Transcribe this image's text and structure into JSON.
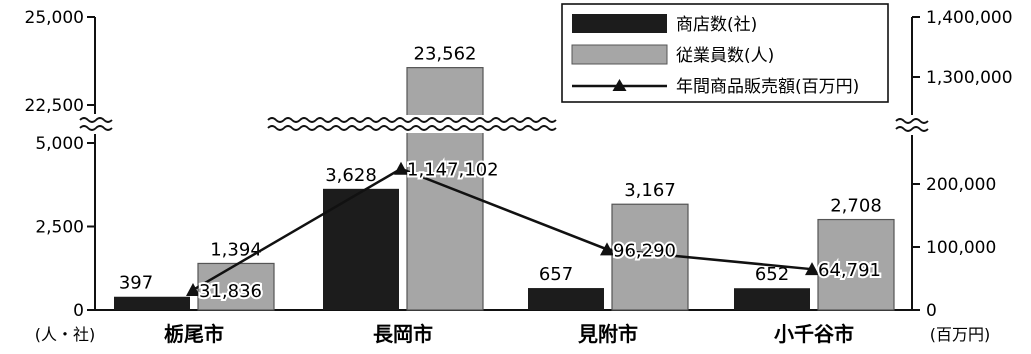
{
  "chart_data": {
    "type": "bar",
    "categories": [
      "栃尾市",
      "長岡市",
      "見附市",
      "小千谷市"
    ],
    "series": [
      {
        "name": "商店数(社)",
        "kind": "bar",
        "axis": "left",
        "color": "#1c1c1c",
        "values": [
          397,
          3628,
          657,
          652
        ]
      },
      {
        "name": "従業員数(人)",
        "kind": "bar",
        "axis": "left",
        "color": "#a6a6a6",
        "values": [
          1394,
          23562,
          3167,
          2708
        ]
      },
      {
        "name": "年間商品販売額(百万円)",
        "kind": "line",
        "axis": "right",
        "color": "#111111",
        "values": [
          31836,
          1147102,
          96290,
          64791
        ]
      }
    ],
    "data_labels": {
      "stores": [
        "397",
        "3,628",
        "657",
        "652"
      ],
      "employees": [
        "1,394",
        "23,562",
        "3,167",
        "2,708"
      ],
      "sales": [
        "31,836",
        "1,147,102",
        "96,290",
        "64,791"
      ]
    },
    "left_axis": {
      "lower_ticks": [
        {
          "value": 0,
          "label": "0"
        },
        {
          "value": 2500,
          "label": "2,500"
        },
        {
          "value": 5000,
          "label": "5,000"
        }
      ],
      "upper_ticks": [
        {
          "value": 22500,
          "label": "22,500"
        },
        {
          "value": 25000,
          "label": "25,000"
        }
      ],
      "lower_range": [
        0,
        5000
      ],
      "upper_range": [
        22500,
        25000
      ],
      "unit": "(人・社)"
    },
    "right_axis": {
      "lower_ticks": [
        {
          "value": 0,
          "label": "0"
        },
        {
          "value": 100000,
          "label": "100,000"
        },
        {
          "value": 200000,
          "label": "200,000"
        }
      ],
      "upper_ticks": [
        {
          "value": 1300000,
          "label": "1,300,000"
        },
        {
          "value": 1400000,
          "label": "1,400,000"
        }
      ],
      "lower_range": [
        0,
        200000
      ],
      "upper_range": [
        1300000,
        1400000
      ],
      "unit": "(百万円)"
    },
    "axis_break": true,
    "legend_position": "top-right",
    "grid": false
  }
}
